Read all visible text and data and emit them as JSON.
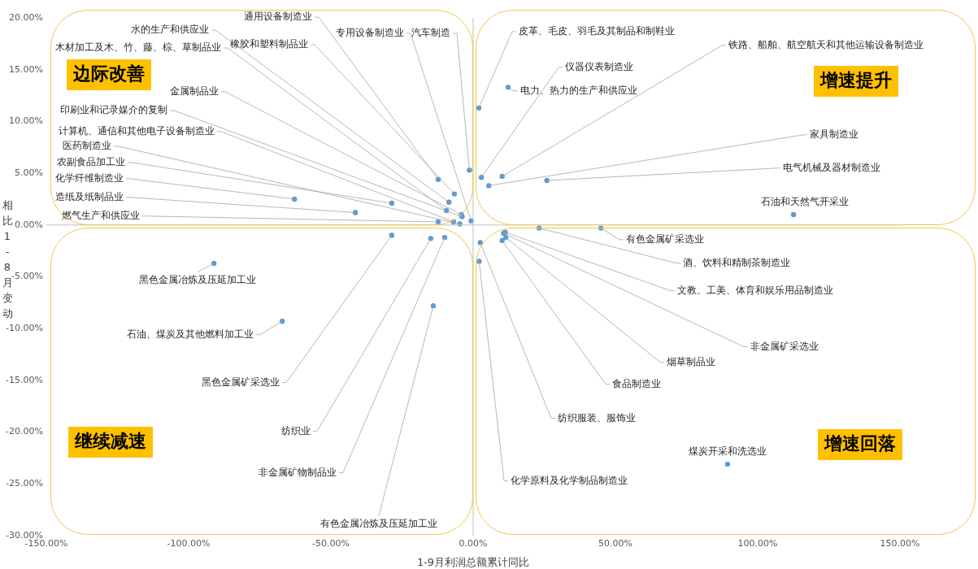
{
  "chart_data": {
    "type": "scatter",
    "xlabel": "1-9月利润总额累计同比",
    "ylabel": "相比1-8月变动",
    "annotations": [
      "边际改善",
      "增速提升",
      "继续减速",
      "增速回落"
    ],
    "x": [
      -12.3,
      -0.7,
      -1.3,
      -8.5,
      -6.6,
      -9.4,
      -4.1,
      -3.9,
      -6.9,
      -4.7,
      -28.6,
      -62.8,
      -41.4,
      -12.3,
      2.0,
      10.2,
      2.9,
      12.3,
      5.5,
      25.9,
      112.6,
      -91.1,
      -67.1,
      -28.6,
      -14.9,
      -10.0,
      -14.0,
      44.9,
      23.2,
      11.3,
      10.7,
      11.5,
      10.2,
      2.5,
      2.1,
      89.4
    ],
    "values": [
      4.4,
      0.4,
      5.3,
      2.2,
      3.0,
      1.4,
      1.0,
      0.8,
      0.3,
      0.1,
      2.1,
      2.5,
      1.2,
      0.3,
      11.3,
      4.7,
      4.6,
      13.3,
      3.8,
      4.3,
      1.0,
      -3.7,
      -9.3,
      -1.0,
      -1.3,
      -1.2,
      -7.8,
      -0.3,
      -0.3,
      -0.7,
      -0.8,
      -1.2,
      -1.5,
      -1.7,
      -3.5,
      -23.1
    ],
    "value_labels": [
      "通用设备制造业",
      "专用设备制造业",
      "汽车制造",
      "水的生产和供应业",
      "橡胶和塑料制品业",
      "木材加工及木、竹、藤、棕、草制品业",
      "金属制品业",
      "印刷业和记录媒介的复制",
      "计算机、通信和其他电子设备制造业",
      "医药制造业",
      "农副食品加工业",
      "化学纤维制造业",
      "造纸及纸制品业",
      "燃气生产和供应业",
      "皮革、毛皮、羽毛及其制品和制鞋业",
      "铁路、船舶、航空航天和其他运输设备制造业",
      "仪器仪表制造业",
      "电力、热力的生产和供应业",
      "家具制造业",
      "电气机械及器材制造业",
      "石油和天然气开采业",
      "黑色金属冶炼及压延加工业",
      "石油、煤炭及其他燃料加工业",
      "黑色金属矿采选业",
      "纺织业",
      "非金属矿物制品业",
      "有色金属冶炼及压延加工业",
      "有色金属矿采选业",
      "酒、饮料和精制茶制造业",
      "文教、工美、体育和娱乐用品制造业",
      "非金属矿采选业",
      "烟草制品业",
      "食品制造业",
      "纺织服装、服饰业",
      "化学原料及化学制品制造业",
      "煤炭开采和洗选业"
    ],
    "color": "#5b9bd5",
    "marker": "circle",
    "legend": false,
    "xlim": [
      -150,
      150
    ],
    "ylim": [
      -30,
      20
    ],
    "xticks": [
      {
        "value": -150,
        "label": "-150.00%"
      },
      {
        "value": -100,
        "label": "-100.00%"
      },
      {
        "value": -50,
        "label": "-50.00%"
      },
      {
        "value": 0,
        "label": "0.00%"
      },
      {
        "value": 50,
        "label": "50.00%"
      },
      {
        "value": 100,
        "label": "100.00%"
      },
      {
        "value": 150,
        "label": "150.00%"
      }
    ],
    "yticks": [
      {
        "value": -30,
        "label": "-30.00%"
      },
      {
        "value": -25,
        "label": "-25.00%"
      },
      {
        "value": -20,
        "label": "-20.00%"
      },
      {
        "value": -15,
        "label": "-15.00%"
      },
      {
        "value": -10,
        "label": "-10.00%"
      },
      {
        "value": -5,
        "label": "-5.00%"
      },
      {
        "value": 0,
        "label": "0.00%"
      },
      {
        "value": 5,
        "label": "5.00%"
      },
      {
        "value": 10,
        "label": "10.00%"
      },
      {
        "value": 15,
        "label": "15.00%"
      },
      {
        "value": 20,
        "label": "20.00%"
      }
    ]
  }
}
